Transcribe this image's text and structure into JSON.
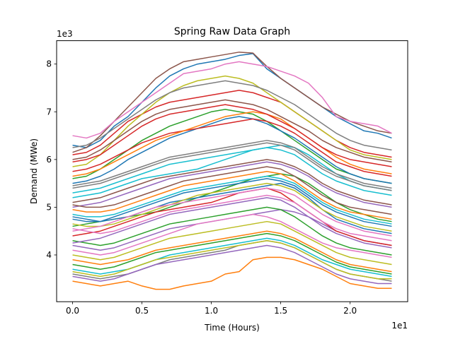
{
  "chart_data": {
    "type": "line",
    "title": "Spring Raw Data Graph",
    "xlabel": "Time (Hours)",
    "ylabel": "Demand (MWe)",
    "x_multiplier": "1e1",
    "y_multiplier": "1e3",
    "xlim": [
      -1.15,
      24.15
    ],
    "ylim": [
      3020,
      8490
    ],
    "x_ticks": [
      0,
      5,
      10,
      15,
      20
    ],
    "x_tick_labels": [
      "0.0",
      "0.5",
      "1.0",
      "1.5",
      "2.0"
    ],
    "y_ticks": [
      4000,
      5000,
      6000,
      7000,
      8000
    ],
    "y_tick_labels": [
      "4",
      "5",
      "6",
      "7",
      "8"
    ],
    "grid": false,
    "legend": "none",
    "colors": [
      "#1f77b4",
      "#ff7f0e",
      "#2ca02c",
      "#d62728",
      "#9467bd",
      "#8c564b",
      "#e377c2",
      "#7f7f7f",
      "#bcbd22",
      "#17becf"
    ],
    "x": [
      0,
      1,
      2,
      3,
      4,
      5,
      6,
      7,
      8,
      9,
      10,
      11,
      12,
      13,
      14,
      15,
      16,
      17,
      18,
      19,
      20,
      21,
      22,
      23
    ],
    "series": [
      {
        "values": [
          6300,
          6250,
          6400,
          6700,
          6900,
          7200,
          7500,
          7750,
          7900,
          8000,
          8050,
          8100,
          8180,
          8220,
          7900,
          7700,
          7500,
          7300,
          7100,
          6900,
          6750,
          6600,
          6550,
          6450
        ]
      },
      {
        "values": [
          3450,
          3400,
          3350,
          3400,
          3450,
          3350,
          3280,
          3280,
          3350,
          3400,
          3450,
          3600,
          3650,
          3900,
          3950,
          3950,
          3900,
          3800,
          3700,
          3550,
          3400,
          3350,
          3300,
          3300
        ]
      },
      {
        "values": [
          4600,
          4650,
          4700,
          4750,
          4800,
          4850,
          4900,
          5000,
          5100,
          5200,
          5300,
          5400,
          5500,
          5600,
          5650,
          5700,
          5650,
          5500,
          5300,
          5100,
          4950,
          4850,
          4750,
          4700
        ]
      },
      {
        "values": [
          6100,
          6150,
          6300,
          6550,
          6800,
          6950,
          7100,
          7200,
          7250,
          7300,
          7350,
          7400,
          7450,
          7400,
          7300,
          7200,
          7000,
          6800,
          6600,
          6400,
          6250,
          6150,
          6100,
          6050
        ]
      },
      {
        "values": [
          4200,
          4150,
          4100,
          4150,
          4250,
          4350,
          4450,
          4550,
          4600,
          4650,
          4700,
          4750,
          4800,
          4850,
          4900,
          4950,
          4900,
          4800,
          4650,
          4500,
          4400,
          4300,
          4250,
          4200
        ]
      },
      {
        "values": [
          6150,
          6250,
          6500,
          6800,
          7100,
          7400,
          7700,
          7900,
          8050,
          8100,
          8150,
          8200,
          8250,
          8230,
          7950,
          7700,
          7500,
          7300,
          7100,
          6950,
          6800,
          6700,
          6600,
          6550
        ]
      },
      {
        "values": [
          6500,
          6450,
          6550,
          6800,
          7000,
          7200,
          7400,
          7600,
          7800,
          7850,
          7900,
          8000,
          8050,
          8000,
          7950,
          7850,
          7750,
          7600,
          7300,
          6900,
          6800,
          6750,
          6700,
          6550
        ]
      },
      {
        "values": [
          3600,
          3550,
          3500,
          3550,
          3600,
          3700,
          3800,
          3900,
          3950,
          4000,
          4050,
          4100,
          4200,
          4250,
          4300,
          4250,
          4150,
          4000,
          3850,
          3700,
          3600,
          3550,
          3500,
          3450
        ]
      },
      {
        "values": [
          5850,
          5900,
          6100,
          6400,
          6700,
          6950,
          7200,
          7400,
          7550,
          7650,
          7700,
          7750,
          7700,
          7600,
          7400,
          7200,
          7000,
          6800,
          6600,
          6400,
          6200,
          6100,
          6050,
          6000
        ]
      },
      {
        "values": [
          5200,
          5250,
          5300,
          5400,
          5500,
          5600,
          5650,
          5700,
          5750,
          5800,
          5900,
          6000,
          6100,
          6200,
          6250,
          6300,
          6250,
          6100,
          5900,
          5700,
          5550,
          5450,
          5400,
          5350
        ]
      },
      {
        "values": [
          4800,
          4750,
          4700,
          4750,
          4800,
          4900,
          5000,
          5100,
          5150,
          5200,
          5250,
          5300,
          5350,
          5400,
          5450,
          5500,
          5400,
          5200,
          4950,
          4750,
          4650,
          4550,
          4500,
          4450
        ]
      },
      {
        "values": [
          3900,
          3850,
          3800,
          3850,
          3900,
          4000,
          4100,
          4150,
          4200,
          4250,
          4300,
          4350,
          4400,
          4450,
          4500,
          4450,
          4350,
          4200,
          4050,
          3900,
          3800,
          3750,
          3700,
          3650
        ]
      },
      {
        "values": [
          5600,
          5650,
          5800,
          6000,
          6200,
          6400,
          6550,
          6700,
          6800,
          6900,
          7000,
          7050,
          7000,
          6950,
          6800,
          6600,
          6400,
          6200,
          6000,
          5800,
          5700,
          5600,
          5550,
          5500
        ]
      },
      {
        "values": [
          4400,
          4450,
          4500,
          4600,
          4700,
          4800,
          4900,
          4950,
          5000,
          5050,
          5100,
          5200,
          5300,
          5350,
          5400,
          5300,
          5100,
          4900,
          4700,
          4500,
          4400,
          4300,
          4250,
          4200
        ]
      },
      {
        "values": [
          5000,
          5050,
          5100,
          5200,
          5300,
          5400,
          5500,
          5600,
          5650,
          5700,
          5750,
          5800,
          5850,
          5900,
          5950,
          5900,
          5800,
          5650,
          5450,
          5300,
          5200,
          5100,
          5050,
          5000
        ]
      },
      {
        "values": [
          6000,
          6050,
          6200,
          6400,
          6600,
          6800,
          6950,
          7050,
          7100,
          7150,
          7200,
          7250,
          7200,
          7150,
          7050,
          6900,
          6750,
          6600,
          6400,
          6250,
          6150,
          6050,
          6000,
          5950
        ]
      },
      {
        "values": [
          4100,
          4050,
          4000,
          4050,
          4150,
          4250,
          4350,
          4450,
          4550,
          4650,
          4700,
          4750,
          4800,
          4850,
          4800,
          4700,
          4550,
          4400,
          4250,
          4150,
          4100,
          4050,
          4000,
          3950
        ]
      },
      {
        "values": [
          5400,
          5450,
          5500,
          5600,
          5700,
          5800,
          5900,
          6000,
          6050,
          6100,
          6150,
          6200,
          6250,
          6300,
          6350,
          6300,
          6200,
          6000,
          5800,
          5650,
          5550,
          5450,
          5400,
          5350
        ]
      },
      {
        "values": [
          4650,
          4600,
          4600,
          4650,
          4750,
          4850,
          4950,
          5050,
          5150,
          5250,
          5300,
          5350,
          5400,
          5450,
          5500,
          5450,
          5350,
          5150,
          4950,
          4800,
          4700,
          4600,
          4550,
          4500
        ]
      },
      {
        "values": [
          3700,
          3650,
          3600,
          3650,
          3700,
          3800,
          3900,
          4000,
          4050,
          4100,
          4150,
          4200,
          4250,
          4300,
          4350,
          4300,
          4200,
          4050,
          3900,
          3800,
          3700,
          3650,
          3600,
          3550
        ]
      },
      {
        "values": [
          5500,
          5550,
          5650,
          5800,
          6000,
          6150,
          6300,
          6450,
          6550,
          6650,
          6750,
          6850,
          6900,
          6850,
          6750,
          6600,
          6450,
          6250,
          6050,
          5850,
          5700,
          5600,
          5550,
          5500
        ]
      },
      {
        "values": [
          4950,
          4900,
          4900,
          4950,
          5050,
          5150,
          5250,
          5350,
          5450,
          5500,
          5550,
          5600,
          5650,
          5700,
          5750,
          5700,
          5550,
          5350,
          5150,
          5000,
          4900,
          4850,
          4800,
          4750
        ]
      },
      {
        "values": [
          4300,
          4250,
          4200,
          4250,
          4350,
          4450,
          4550,
          4650,
          4700,
          4750,
          4800,
          4850,
          4900,
          4950,
          5000,
          4950,
          4800,
          4600,
          4400,
          4250,
          4150,
          4100,
          4050,
          4000
        ]
      },
      {
        "values": [
          5750,
          5800,
          5900,
          6050,
          6200,
          6350,
          6450,
          6550,
          6600,
          6650,
          6700,
          6750,
          6800,
          6850,
          6800,
          6700,
          6550,
          6350,
          6150,
          5950,
          5850,
          5750,
          5700,
          5650
        ]
      },
      {
        "values": [
          3550,
          3500,
          3450,
          3500,
          3600,
          3700,
          3800,
          3850,
          3900,
          3950,
          4000,
          4050,
          4100,
          4150,
          4200,
          4150,
          4050,
          3900,
          3750,
          3600,
          3500,
          3450,
          3400,
          3400
        ]
      },
      {
        "values": [
          5100,
          5150,
          5200,
          5300,
          5400,
          5500,
          5600,
          5650,
          5700,
          5750,
          5800,
          5850,
          5900,
          5950,
          6000,
          5950,
          5850,
          5700,
          5500,
          5350,
          5250,
          5150,
          5100,
          5050
        ]
      },
      {
        "values": [
          4500,
          4550,
          4600,
          4700,
          4800,
          4900,
          5000,
          5050,
          5100,
          5150,
          5200,
          5250,
          5300,
          5350,
          5400,
          5350,
          5250,
          5050,
          4850,
          4700,
          4600,
          4500,
          4450,
          4400
        ]
      },
      {
        "values": [
          6250,
          6300,
          6450,
          6650,
          6850,
          7050,
          7250,
          7400,
          7500,
          7550,
          7600,
          7650,
          7600,
          7550,
          7450,
          7300,
          7150,
          6950,
          6750,
          6550,
          6400,
          6300,
          6250,
          6200
        ]
      },
      {
        "values": [
          4000,
          3950,
          3900,
          3950,
          4050,
          4150,
          4250,
          4350,
          4400,
          4450,
          4500,
          4550,
          4600,
          4650,
          4700,
          4650,
          4500,
          4350,
          4200,
          4050,
          3950,
          3900,
          3850,
          3800
        ]
      },
      {
        "values": [
          5300,
          5350,
          5400,
          5500,
          5600,
          5700,
          5800,
          5900,
          5950,
          6000,
          6050,
          6100,
          6150,
          6200,
          6250,
          6200,
          6100,
          5900,
          5700,
          5550,
          5450,
          5350,
          5300,
          5250
        ]
      },
      {
        "values": [
          4750,
          4700,
          4700,
          4800,
          4900,
          5000,
          5100,
          5200,
          5300,
          5350,
          5400,
          5450,
          5500,
          5550,
          5600,
          5550,
          5450,
          5250,
          5050,
          4900,
          4800,
          4700,
          4650,
          4600
        ]
      },
      {
        "values": [
          5650,
          5700,
          5800,
          5950,
          6100,
          6250,
          6400,
          6500,
          6600,
          6700,
          6800,
          6900,
          6950,
          7000,
          6950,
          6850,
          6650,
          6450,
          6250,
          6050,
          5900,
          5800,
          5750,
          5700
        ]
      },
      {
        "values": [
          3800,
          3750,
          3700,
          3750,
          3850,
          3950,
          4050,
          4100,
          4150,
          4200,
          4250,
          4300,
          4350,
          4400,
          4450,
          4400,
          4300,
          4150,
          4000,
          3850,
          3750,
          3700,
          3650,
          3600
        ]
      },
      {
        "values": [
          5950,
          6000,
          6100,
          6300,
          6500,
          6700,
          6850,
          6950,
          7000,
          7050,
          7100,
          7150,
          7100,
          7050,
          6950,
          6800,
          6650,
          6450,
          6250,
          6100,
          6000,
          5950,
          5900,
          5850
        ]
      },
      {
        "values": [
          4250,
          4300,
          4350,
          4450,
          4550,
          4650,
          4750,
          4850,
          4900,
          4950,
          5000,
          5050,
          5100,
          5150,
          5200,
          5150,
          5000,
          4800,
          4600,
          4450,
          4350,
          4250,
          4200,
          4150
        ]
      },
      {
        "values": [
          5050,
          5000,
          5000,
          5050,
          5150,
          5250,
          5350,
          5450,
          5550,
          5600,
          5650,
          5700,
          5750,
          5800,
          5850,
          5800,
          5650,
          5450,
          5250,
          5100,
          5000,
          4950,
          4900,
          4850
        ]
      },
      {
        "values": [
          4550,
          4500,
          4450,
          4500,
          4600,
          4700,
          4800,
          4900,
          4950,
          5000,
          5050,
          5100,
          5150,
          5200,
          5250,
          5200,
          5100,
          4900,
          4700,
          4550,
          4450,
          4400,
          4350,
          4300
        ]
      },
      {
        "values": [
          5450,
          5500,
          5550,
          5650,
          5750,
          5850,
          5950,
          6050,
          6100,
          6150,
          6200,
          6250,
          6300,
          6350,
          6400,
          6350,
          6250,
          6050,
          5850,
          5700,
          5600,
          5500,
          5450,
          5400
        ]
      },
      {
        "values": [
          3650,
          3600,
          3550,
          3600,
          3700,
          3800,
          3900,
          3950,
          4000,
          4050,
          4100,
          4150,
          4200,
          4250,
          4300,
          4250,
          4150,
          4000,
          3850,
          3700,
          3600,
          3550,
          3500,
          3500
        ]
      },
      {
        "values": [
          4850,
          4800,
          4800,
          4850,
          4950,
          5050,
          5150,
          5250,
          5350,
          5400,
          5450,
          5500,
          5550,
          5600,
          5650,
          5600,
          5500,
          5300,
          5100,
          4950,
          4850,
          4750,
          4700,
          4650
        ]
      }
    ]
  }
}
